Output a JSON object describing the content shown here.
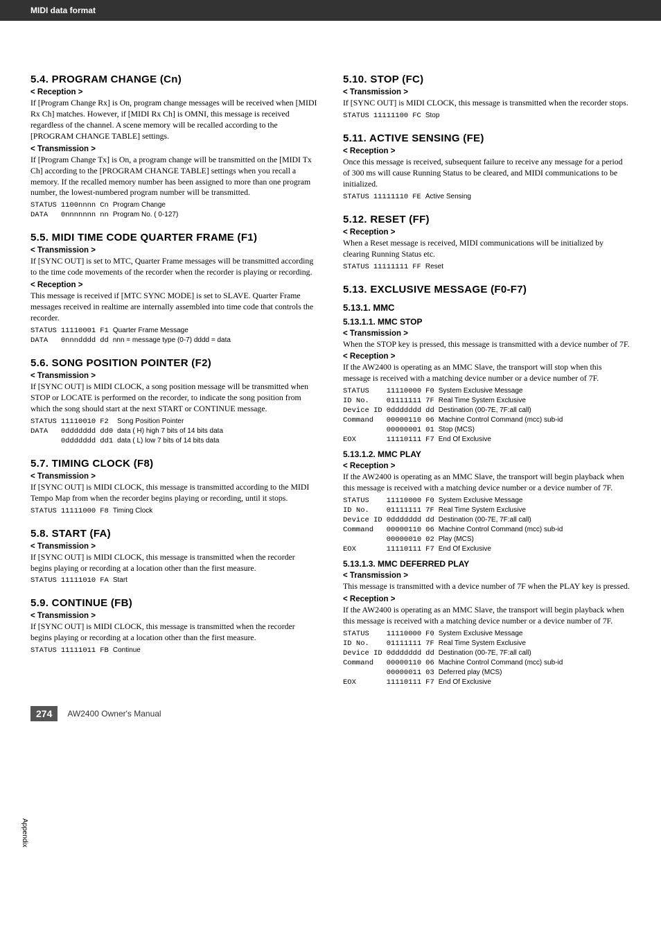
{
  "header": {
    "title": "MIDI data format"
  },
  "footer": {
    "page": "274",
    "manual": "AW2400  Owner's Manual",
    "side_tab": "Appendix"
  },
  "left": {
    "s54": {
      "title": "5.4. PROGRAM CHANGE (Cn)",
      "reception_h": "< Reception >",
      "reception_body": "If [Program Change Rx] is On, program change messages will be received when [MIDI Rx Ch] matches. However, if [MIDI Rx Ch] is OMNI, this message is received regardless of the channel.\nA scene memory will be recalled according to the [PROGRAM CHANGE TABLE] settings.",
      "transmission_h": "< Transmission >",
      "transmission_body": "If [Program Change Tx] is On, a program change will be transmitted on the [MIDI Tx Ch] according to the [PROGRAM CHANGE TABLE] settings when you recall a memory. If the recalled memory number has been assigned to more than one program number, the lowest-numbered program number will be transmitted.",
      "table": [
        [
          "STATUS",
          "1100nnnn",
          "Cn",
          "Program Change"
        ],
        [
          "DATA",
          "0nnnnnnn",
          "nn",
          "Program No. ( 0-127)"
        ]
      ]
    },
    "s55": {
      "title": "5.5. MIDI TIME CODE QUARTER FRAME (F1)",
      "transmission_h": "< Transmission >",
      "transmission_body": "If [SYNC OUT] is set to MTC, Quarter Frame messages will be transmitted according to the time code movements of the recorder when the recorder is playing or recording.",
      "reception_h": "< Reception >",
      "reception_body": "This message is received if [MTC SYNC MODE] is set to SLAVE. Quarter Frame messages received in realtime are internally assembled into time code that controls the recorder.",
      "table": [
        [
          "STATUS",
          "11110001",
          "F1",
          "Quarter Frame Message"
        ],
        [
          "DATA",
          "0nnndddd",
          "dd",
          "nnn = message type (0-7)   dddd = data"
        ]
      ]
    },
    "s56": {
      "title": "5.6. SONG POSITION POINTER (F2)",
      "transmission_h": "< Transmission >",
      "transmission_body": "If [SYNC OUT] is MIDI CLOCK, a song position message will be transmitted when STOP or LOCATE is performed on the recorder, to indicate the song position from which the song should start at the next START or CONTINUE message.",
      "table": [
        [
          "STATUS",
          "11110010",
          "F2",
          "Song Position Pointer"
        ],
        [
          "DATA",
          "0ddddddd",
          "dd0",
          "data ( H) high 7 bits of 14 bits data"
        ],
        [
          "",
          "0ddddddd",
          "dd1",
          "data ( L) low 7 bits of 14 bits data"
        ]
      ]
    },
    "s57": {
      "title": "5.7. TIMING CLOCK (F8)",
      "transmission_h": "< Transmission >",
      "transmission_body": "If [SYNC OUT] is MIDI CLOCK, this message is transmitted according to the MIDI Tempo Map from when the recorder begins playing or recording, until it stops.",
      "table": [
        [
          "STATUS",
          "11111000",
          "F8",
          "Timing Clock"
        ]
      ]
    },
    "s58": {
      "title": "5.8. START (FA)",
      "transmission_h": "< Transmission >",
      "transmission_body": "If [SYNC OUT] is MIDI CLOCK, this message is transmitted when the recorder begins playing or recording at a location other than the first measure.",
      "table": [
        [
          "STATUS",
          "11111010",
          "FA",
          "Start"
        ]
      ]
    },
    "s59": {
      "title": "5.9. CONTINUE (FB)",
      "transmission_h": "< Transmission >",
      "transmission_body": "If [SYNC OUT] is MIDI CLOCK, this message is transmitted when the recorder begins playing or recording at a location other than the first measure.",
      "table": [
        [
          "STATUS",
          "11111011",
          "FB",
          "Continue"
        ]
      ]
    }
  },
  "right": {
    "s510": {
      "title": "5.10. STOP (FC)",
      "transmission_h": "< Transmission >",
      "transmission_body": "If [SYNC OUT] is MIDI CLOCK, this message is transmitted when the recorder stops.",
      "table": [
        [
          "STATUS",
          "11111100",
          "FC",
          "Stop"
        ]
      ]
    },
    "s511": {
      "title": "5.11. ACTIVE SENSING (FE)",
      "reception_h": "< Reception >",
      "reception_body": "Once this message is received, subsequent failure to receive any message for a period of 300 ms will cause Running Status to be cleared, and MIDI communications to be initialized.",
      "table": [
        [
          "STATUS",
          "11111110",
          "FE",
          "Active Sensing"
        ]
      ]
    },
    "s512": {
      "title": "5.12. RESET (FF)",
      "reception_h": "< Reception >",
      "reception_body": "When a Reset message is received, MIDI communications will be initialized by clearing Running Status etc.",
      "table": [
        [
          "STATUS",
          "11111111",
          "FF",
          "Reset"
        ]
      ]
    },
    "s513": {
      "title": "5.13. EXCLUSIVE MESSAGE (F0-F7)",
      "mmc_h": "5.13.1. MMC",
      "mmc_stop_h": "5.13.1.1. MMC STOP",
      "mmc_stop_tx_h": "< Transmission >",
      "mmc_stop_tx_body": "When the STOP key is pressed, this message is transmitted with a device number of 7F.",
      "mmc_stop_rx_h": "< Reception >",
      "mmc_stop_rx_body": "If the AW2400 is operating as an MMC Slave, the transport will stop when this message is received with a matching device number or a device number of 7F.",
      "mmc_stop_table": [
        [
          "STATUS",
          "11110000",
          "F0",
          "System Exclusive Message"
        ],
        [
          "ID No.",
          "01111111",
          "7F",
          "Real Time System Exclusive"
        ],
        [
          "Device ID",
          "0ddddddd",
          "dd",
          "Destination (00-7E, 7F:all call)"
        ],
        [
          "Command",
          "00000110",
          "06",
          "Machine Control Command (mcc) sub-id"
        ],
        [
          "",
          "00000001",
          "01",
          "Stop (MCS)"
        ],
        [
          "EOX",
          "11110111",
          "F7",
          "End Of Exclusive"
        ]
      ],
      "mmc_play_h": "5.13.1.2. MMC PLAY",
      "mmc_play_rx_h": "< Reception >",
      "mmc_play_rx_body": "If the AW2400 is operating as an MMC Slave, the transport will begin playback when this message is received with a matching device number or a device number of 7F.",
      "mmc_play_table": [
        [
          "STATUS",
          "11110000",
          "F0",
          "System Exclusive Message"
        ],
        [
          "ID No.",
          "01111111",
          "7F",
          "Real Time System Exclusive"
        ],
        [
          "Device ID",
          "0ddddddd",
          "dd",
          "Destination (00-7E, 7F:all call)"
        ],
        [
          "Command",
          "00000110",
          "06",
          "Machine Control Command (mcc) sub-id"
        ],
        [
          "",
          "00000010",
          "02",
          "Play (MCS)"
        ],
        [
          "EOX",
          "11110111",
          "F7",
          "End Of Exclusive"
        ]
      ],
      "mmc_def_h": "5.13.1.3. MMC DEFERRED PLAY",
      "mmc_def_tx_h": "< Transmission >",
      "mmc_def_tx_body": "This message is transmitted with a device number of 7F when the PLAY key is pressed.",
      "mmc_def_rx_h": "< Reception >",
      "mmc_def_rx_body": "If the AW2400 is operating as an MMC Slave, the transport will begin playback when this message is received with a matching device number or a device number of 7F.",
      "mmc_def_table": [
        [
          "STATUS",
          "11110000",
          "F0",
          "System Exclusive Message"
        ],
        [
          "ID No.",
          "01111111",
          "7F",
          "Real Time System Exclusive"
        ],
        [
          "Device ID",
          "0ddddddd",
          "dd",
          "Destination (00-7E, 7F:all call)"
        ],
        [
          "Command",
          "00000110",
          "06",
          "Machine Control Command (mcc) sub-id"
        ],
        [
          "",
          "00000011",
          "03",
          "Deferred play (MCS)"
        ],
        [
          "EOX",
          "11110111",
          "F7",
          "End Of Exclusive"
        ]
      ]
    }
  }
}
